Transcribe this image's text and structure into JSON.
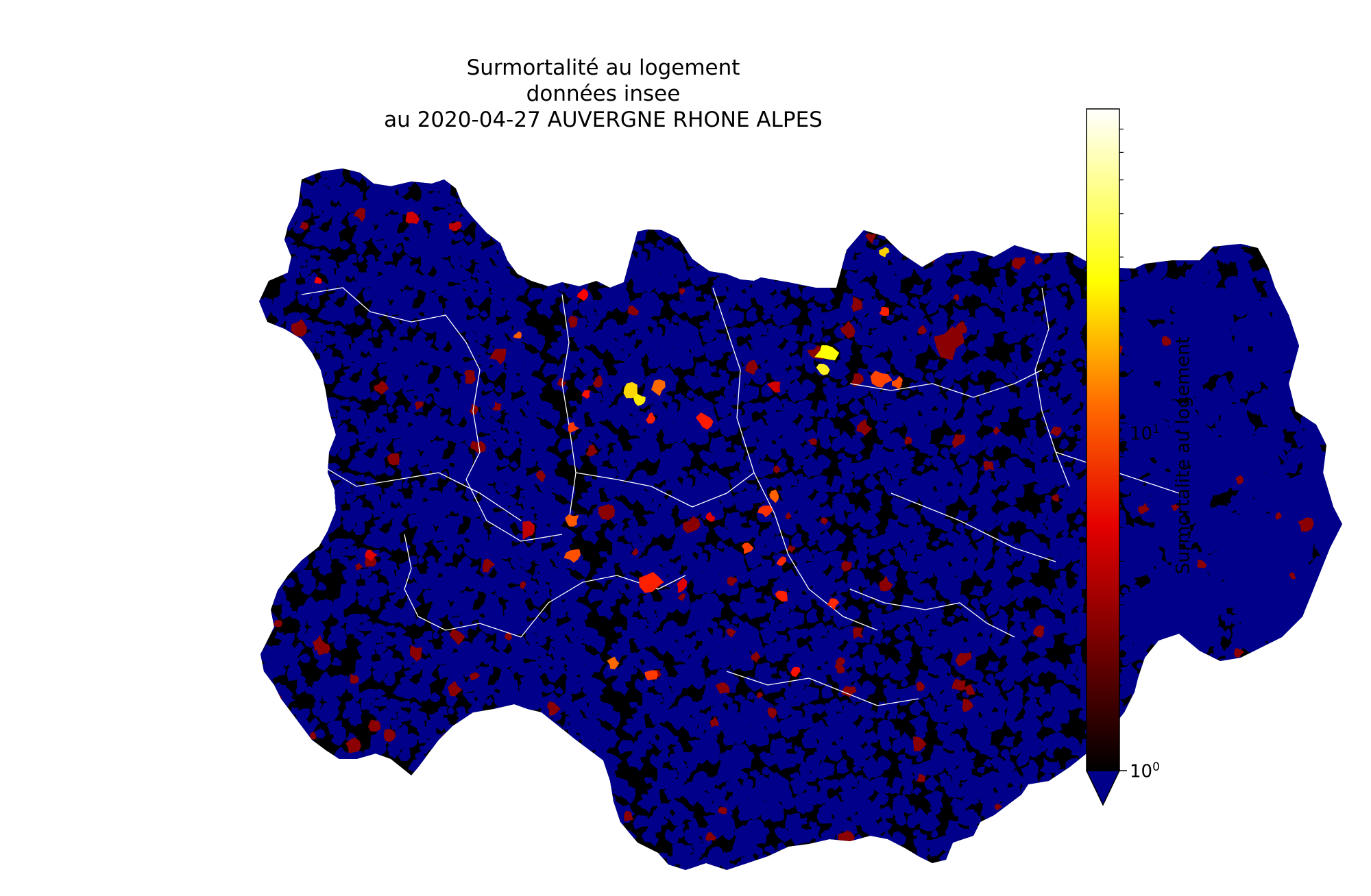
{
  "title": {
    "line1": "Surmortalité au logement",
    "line2": "données insee",
    "line3": "au 2020-04-27 AUVERGNE RHONE ALPES"
  },
  "colorbar": {
    "label": "Surmortalite au logement",
    "scale": "log",
    "vmin": 1,
    "vmax": 80,
    "colormap": "hot",
    "under_color": "#00008b",
    "extend": "min",
    "ticks": [
      {
        "value": 1,
        "base": "10",
        "exp": "0"
      },
      {
        "value": 10,
        "base": "10",
        "exp": "1"
      }
    ]
  },
  "map": {
    "region": "Auvergne-Rhône-Alpes",
    "colors": {
      "under": "#00008b",
      "low": "#000000",
      "mid": "#8b0000",
      "high": "#ff2000",
      "top": "#ffff00",
      "border": "#ffffff"
    }
  }
}
